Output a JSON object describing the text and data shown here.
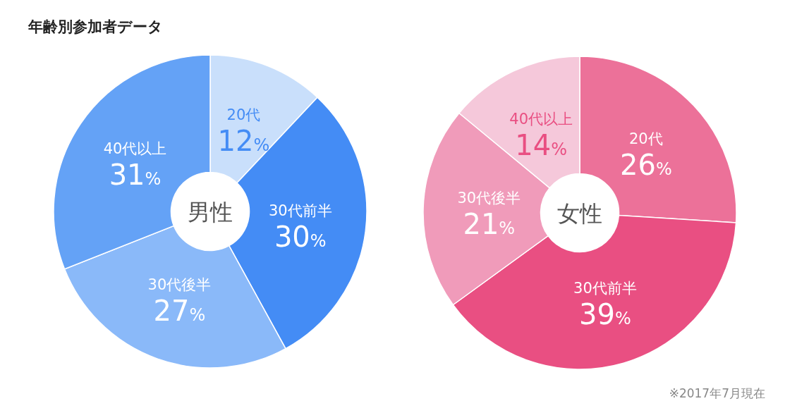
{
  "chart_data": [
    {
      "type": "donut",
      "title": "年齢別参加者データ",
      "categories": [
        "20代",
        "30代前半",
        "30代後半",
        "40代以上"
      ],
      "values": [
        12,
        30,
        27,
        31
      ],
      "value_labels": [
        "12%",
        "30%",
        "27%",
        "31%"
      ],
      "colors": [
        "#c9dffb",
        "#448cf5",
        "#8ab9f9",
        "#64a2f6"
      ],
      "annotations": [
        "男性"
      ]
    },
    {
      "type": "donut",
      "categories": [
        "20代",
        "30代前半",
        "30代後半",
        "40代以上"
      ],
      "values": [
        26,
        39,
        21,
        14
      ],
      "value_labels": [
        "26%",
        "39%",
        "21%",
        "14%"
      ],
      "colors": [
        "#ec7199",
        "#e94f82",
        "#f09bba",
        "#f5c8da"
      ],
      "annotations": [
        "女性",
        "※2017年7月現在"
      ]
    }
  ]
}
